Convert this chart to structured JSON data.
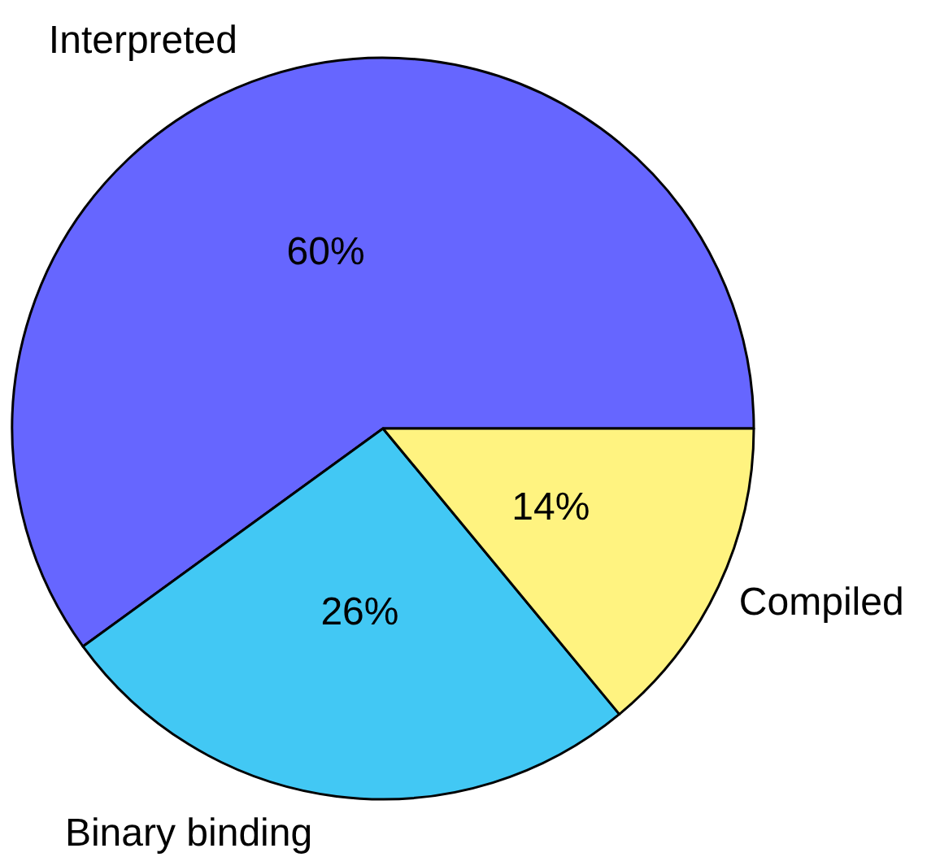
{
  "chart_data": {
    "type": "pie",
    "categories": [
      "Interpreted",
      "Binary binding",
      "Compiled"
    ],
    "values": [
      60,
      26,
      14
    ],
    "colors": [
      "#6666ff",
      "#42c8f4",
      "#fff380"
    ],
    "value_labels": [
      "60%",
      "26%",
      "14%"
    ]
  }
}
